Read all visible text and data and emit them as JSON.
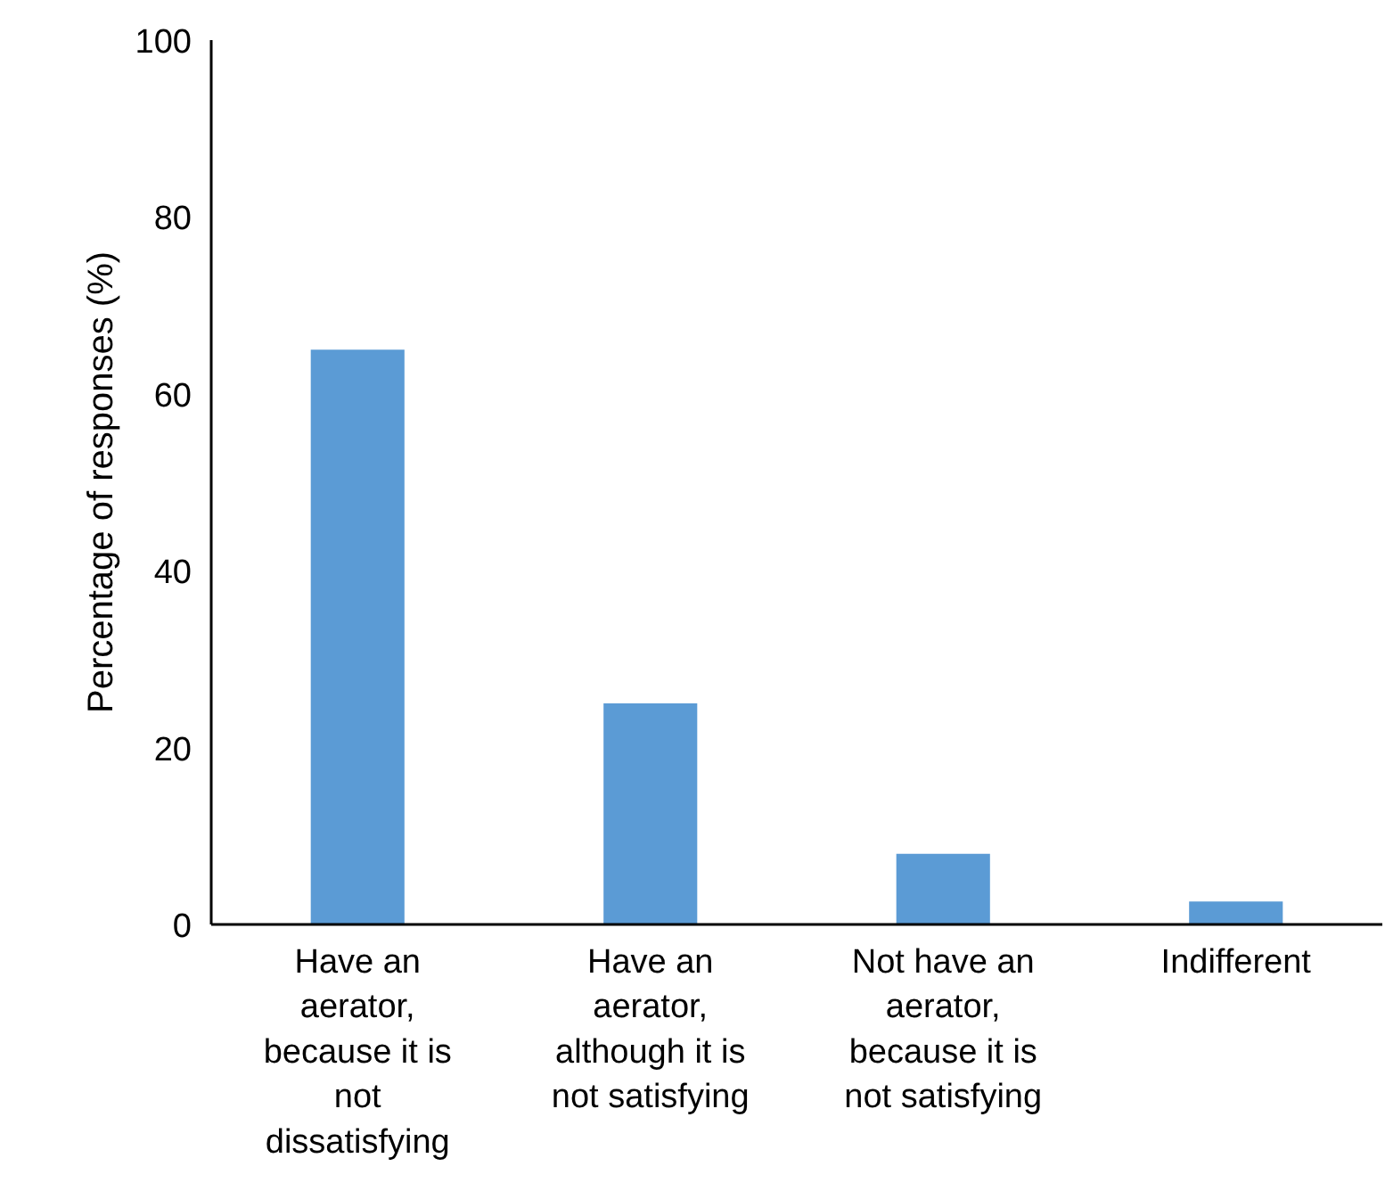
{
  "chart_data": {
    "type": "bar",
    "categories": [
      "Have an aerator, because it is not dissatisfying",
      "Have an aerator, although it is not satisfying",
      "Not have an aerator, because it is not satisfying",
      "Indifferent"
    ],
    "values": [
      65,
      25,
      8,
      2.6
    ],
    "color": "#5b9bd5",
    "ylabel": "Percentage of responses (%)",
    "ylim": [
      0,
      100
    ],
    "yticks": [
      0,
      20,
      40,
      60,
      80,
      100
    ],
    "grid": false
  }
}
